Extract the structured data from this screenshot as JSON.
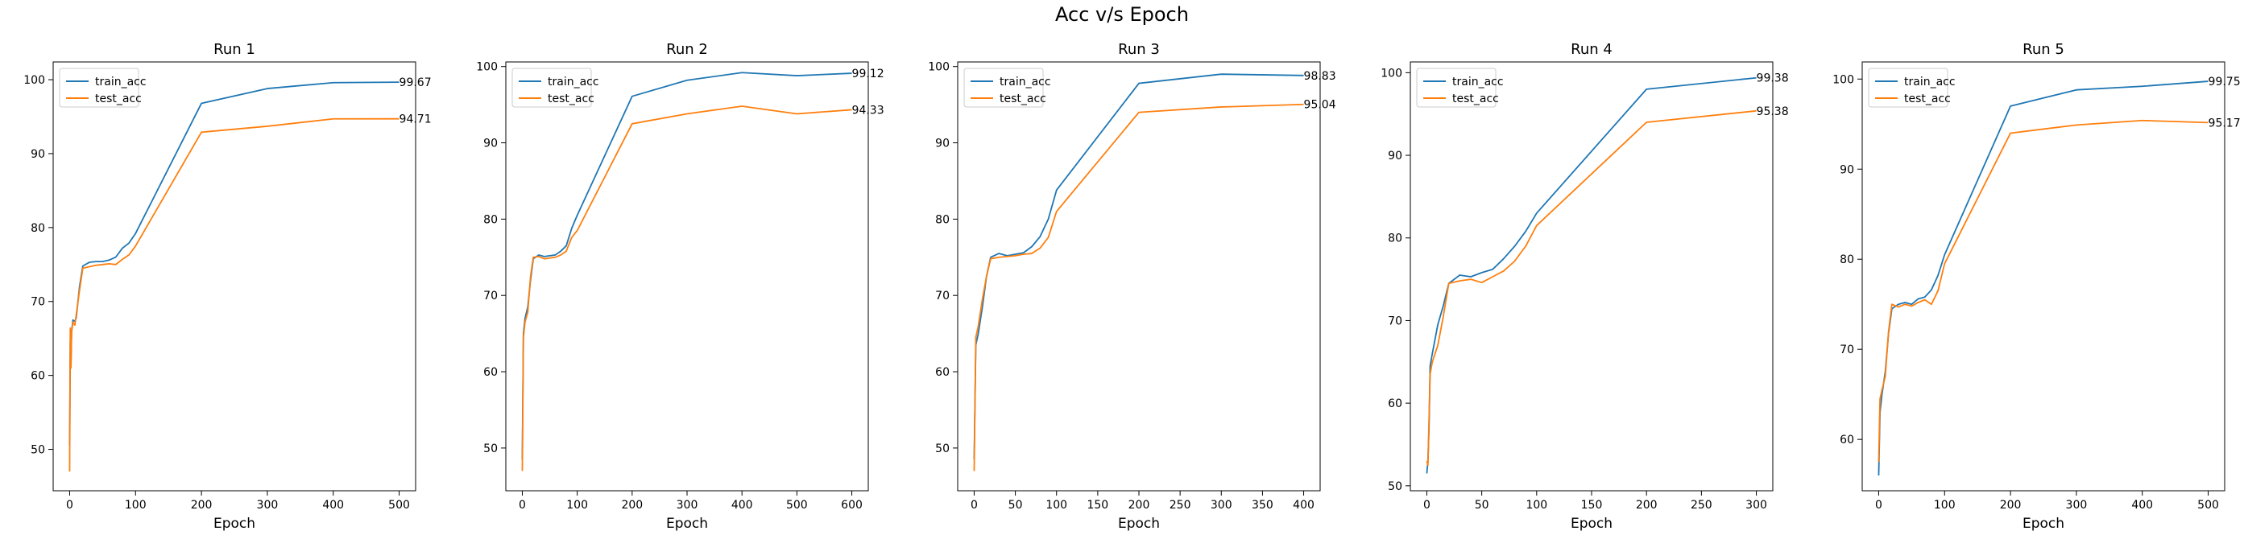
{
  "figure": {
    "title": "Acc v/s Epoch",
    "colors": {
      "train": "#1f77b4",
      "test": "#ff7f0e"
    }
  },
  "chart_data": [
    {
      "type": "line",
      "title": "Run 1",
      "xlabel": "Epoch",
      "ylabel": "",
      "xlim": [
        -25,
        525
      ],
      "ylim": [
        44.4,
        102.4
      ],
      "xticks": [
        0,
        100,
        200,
        300,
        400,
        500
      ],
      "yticks": [
        50,
        60,
        70,
        80,
        90,
        100
      ],
      "legend": "upper-left",
      "series": [
        {
          "name": "train_acc",
          "x": [
            0,
            1,
            2,
            3,
            5,
            8,
            10,
            15,
            20,
            30,
            40,
            50,
            60,
            70,
            80,
            90,
            100,
            200,
            300,
            400,
            500
          ],
          "y": [
            50.5,
            64.5,
            61.8,
            66.0,
            67.5,
            67.3,
            67.8,
            72.0,
            74.8,
            75.3,
            75.4,
            75.4,
            75.6,
            76.0,
            77.2,
            77.9,
            79.2,
            96.8,
            98.8,
            99.6,
            99.67
          ]
        },
        {
          "name": "test_acc",
          "x": [
            0,
            1,
            2,
            3,
            5,
            8,
            10,
            15,
            20,
            30,
            40,
            50,
            60,
            70,
            80,
            90,
            100,
            200,
            300,
            400,
            500
          ],
          "y": [
            47.0,
            66.4,
            61.0,
            65.8,
            67.2,
            66.8,
            68.2,
            71.5,
            74.5,
            74.7,
            74.9,
            75.0,
            75.1,
            75.0,
            75.7,
            76.3,
            77.5,
            92.9,
            93.7,
            94.7,
            94.71
          ]
        }
      ],
      "annotations": [
        "99.67",
        "94.71"
      ]
    },
    {
      "type": "line",
      "title": "Run 2",
      "xlabel": "Epoch",
      "ylabel": "",
      "xlim": [
        -30,
        630
      ],
      "ylim": [
        44.4,
        100.6
      ],
      "xticks": [
        0,
        100,
        200,
        300,
        400,
        500,
        600
      ],
      "yticks": [
        50,
        60,
        70,
        80,
        90,
        100
      ],
      "legend": "upper-left",
      "series": [
        {
          "name": "train_acc",
          "x": [
            0,
            2,
            5,
            10,
            15,
            20,
            30,
            40,
            50,
            60,
            70,
            80,
            90,
            100,
            200,
            300,
            400,
            500,
            600
          ],
          "y": [
            48.5,
            65.0,
            67.0,
            68.5,
            72.0,
            74.8,
            75.3,
            75.1,
            75.2,
            75.3,
            75.8,
            76.5,
            78.8,
            80.5,
            96.1,
            98.2,
            99.2,
            98.8,
            99.12
          ]
        },
        {
          "name": "test_acc",
          "x": [
            0,
            2,
            5,
            10,
            15,
            20,
            30,
            40,
            50,
            60,
            70,
            80,
            90,
            100,
            200,
            300,
            400,
            500,
            600
          ],
          "y": [
            47.0,
            64.5,
            66.5,
            67.8,
            72.5,
            75.0,
            75.1,
            74.8,
            74.9,
            75.0,
            75.3,
            75.8,
            77.6,
            78.5,
            92.5,
            93.8,
            94.8,
            93.8,
            94.33
          ]
        }
      ],
      "annotations": [
        "99.12",
        "94.33"
      ]
    },
    {
      "type": "line",
      "title": "Run 3",
      "xlabel": "Epoch",
      "ylabel": "",
      "xlim": [
        -20,
        420
      ],
      "ylim": [
        44.4,
        100.6
      ],
      "xticks": [
        0,
        50,
        100,
        150,
        200,
        250,
        300,
        350,
        400
      ],
      "yticks": [
        50,
        60,
        70,
        80,
        90,
        100
      ],
      "legend": "upper-left",
      "series": [
        {
          "name": "train_acc",
          "x": [
            0,
            2,
            5,
            10,
            15,
            20,
            30,
            40,
            50,
            60,
            70,
            80,
            90,
            100,
            200,
            300,
            400
          ],
          "y": [
            48.5,
            63.5,
            65.0,
            68.5,
            72.5,
            75.0,
            75.5,
            75.2,
            75.4,
            75.6,
            76.4,
            77.7,
            80.0,
            83.8,
            97.8,
            99.0,
            98.83
          ]
        },
        {
          "name": "test_acc",
          "x": [
            0,
            2,
            5,
            10,
            15,
            20,
            30,
            40,
            50,
            60,
            70,
            80,
            90,
            100,
            200,
            300,
            400
          ],
          "y": [
            47.0,
            64.5,
            66.0,
            69.5,
            72.5,
            74.8,
            75.0,
            75.1,
            75.2,
            75.4,
            75.5,
            76.2,
            77.6,
            81.0,
            94.0,
            94.7,
            95.04
          ]
        }
      ],
      "annotations": [
        "98.83",
        "95.04"
      ]
    },
    {
      "type": "line",
      "title": "Run 4",
      "xlabel": "Epoch",
      "ylabel": "",
      "xlim": [
        -15,
        315
      ],
      "ylim": [
        49.4,
        101.3
      ],
      "xticks": [
        0,
        50,
        100,
        150,
        200,
        250,
        300
      ],
      "yticks": [
        50,
        60,
        70,
        80,
        90,
        100
      ],
      "legend": "upper-left",
      "series": [
        {
          "name": "train_acc",
          "x": [
            0,
            1,
            2,
            3,
            5,
            10,
            15,
            20,
            30,
            40,
            50,
            60,
            70,
            80,
            90,
            100,
            200,
            300
          ],
          "y": [
            51.5,
            53.0,
            57.0,
            64.5,
            66.0,
            69.5,
            71.8,
            74.5,
            75.5,
            75.3,
            75.8,
            76.2,
            77.5,
            79.0,
            80.8,
            83.0,
            98.0,
            99.38
          ]
        },
        {
          "name": "test_acc",
          "x": [
            0,
            1,
            2,
            3,
            5,
            10,
            15,
            20,
            30,
            40,
            50,
            60,
            70,
            80,
            90,
            100,
            200,
            300
          ],
          "y": [
            53.0,
            52.5,
            58.0,
            63.5,
            65.0,
            67.0,
            70.5,
            74.5,
            74.8,
            75.0,
            74.6,
            75.3,
            76.0,
            77.2,
            79.0,
            81.5,
            94.0,
            95.38
          ]
        }
      ],
      "annotations": [
        "99.38",
        "95.38"
      ]
    },
    {
      "type": "line",
      "title": "Run 5",
      "xlabel": "Epoch",
      "ylabel": "",
      "xlim": [
        -25,
        525
      ],
      "ylim": [
        54.3,
        101.9
      ],
      "xticks": [
        0,
        100,
        200,
        300,
        400,
        500
      ],
      "yticks": [
        60,
        70,
        80,
        90,
        100
      ],
      "legend": "upper-left",
      "series": [
        {
          "name": "train_acc",
          "x": [
            0,
            2,
            5,
            10,
            15,
            20,
            30,
            40,
            50,
            60,
            70,
            80,
            90,
            100,
            200,
            300,
            400,
            500
          ],
          "y": [
            56.0,
            63.0,
            65.0,
            67.5,
            71.8,
            74.5,
            75.0,
            75.2,
            75.0,
            75.6,
            75.8,
            76.6,
            78.2,
            80.5,
            97.0,
            98.8,
            99.2,
            99.75
          ]
        },
        {
          "name": "test_acc",
          "x": [
            0,
            2,
            5,
            10,
            15,
            20,
            30,
            40,
            50,
            60,
            70,
            80,
            90,
            100,
            200,
            300,
            400,
            500
          ],
          "y": [
            57.5,
            64.5,
            65.5,
            67.0,
            72.0,
            75.0,
            74.7,
            75.0,
            74.8,
            75.2,
            75.5,
            75.0,
            76.5,
            79.5,
            94.0,
            94.9,
            95.4,
            95.17
          ]
        }
      ],
      "annotations": [
        "99.75",
        "95.17"
      ]
    }
  ]
}
